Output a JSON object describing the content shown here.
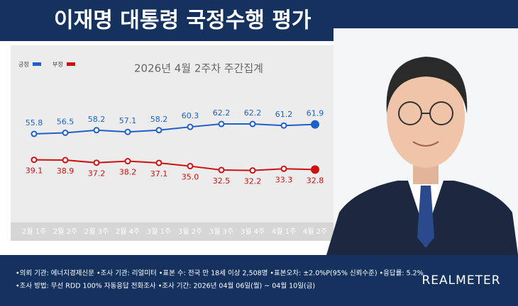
{
  "chart_data": {
    "type": "line",
    "title": "이재명 대통령 국정수행 평가",
    "subtitle": "2026년 4월 2주차 주간집계",
    "categories": [
      "2월 1주",
      "2월 2주",
      "2월 3주",
      "2월 4주",
      "3월 1주",
      "3월 2주",
      "3월 3주",
      "3월 4주",
      "4월 1주",
      "4월 2주"
    ],
    "series": [
      {
        "name": "긍정",
        "color": "#1f5fc8",
        "values": [
          55.8,
          56.5,
          58.2,
          57.1,
          58.2,
          60.3,
          62.2,
          62.2,
          61.2,
          61.9
        ]
      },
      {
        "name": "부정",
        "color": "#cc1111",
        "values": [
          39.1,
          38.9,
          37.2,
          38.2,
          37.1,
          35.0,
          32.5,
          32.2,
          33.3,
          32.8
        ],
        "value_labels": [
          "39.1",
          "38.9",
          "37.2",
          "38.2",
          "37.1",
          "35.0",
          "32.5",
          "32.2",
          "33.3",
          "32.8"
        ]
      }
    ],
    "ylim": [
      30,
      65
    ]
  },
  "footer": {
    "notes": [
      "•의뢰 기관: 에너지경제신문 •조사 기관: 리얼미터 •표본 수: 전국 만 18세 이상 2,508명 •표본오차: ±2.0%P(95% 신뢰수준) •응답률: 5.2%",
      "•조사 방법: 무선 RDD 100% 자동응답 전화조사 •조사 기간: 2026년 04월 06일(월) ~ 04월 10일(금)"
    ],
    "brand": "REALMETER"
  }
}
